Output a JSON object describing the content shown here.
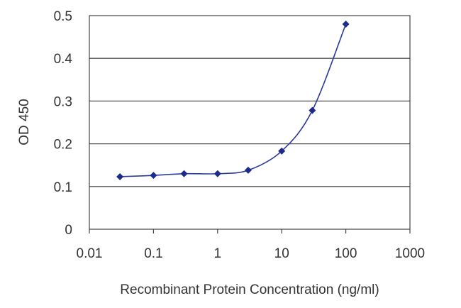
{
  "chart_data": {
    "type": "line",
    "title": "",
    "xlabel": "Recombinant Protein Concentration (ng/ml)",
    "ylabel": "OD 450",
    "x_scale": "log",
    "xlim": [
      0.01,
      1000
    ],
    "ylim": [
      0,
      0.5
    ],
    "x_ticks": [
      "0.01",
      "0.1",
      "1",
      "10",
      "100",
      "1000"
    ],
    "y_ticks": [
      "0",
      "0.1",
      "0.2",
      "0.3",
      "0.4",
      "0.5"
    ],
    "grid": "horizontal",
    "series": [
      {
        "x": [
          0.03,
          0.1,
          0.3,
          1,
          3,
          10,
          30,
          100
        ],
        "y": [
          0.123,
          0.126,
          0.13,
          0.13,
          0.138,
          0.183,
          0.278,
          0.48
        ]
      }
    ],
    "colors": {
      "series": "#2b3a9a",
      "marker": "#1c2a8c",
      "grid": "#555555",
      "axis": "#444444"
    }
  }
}
